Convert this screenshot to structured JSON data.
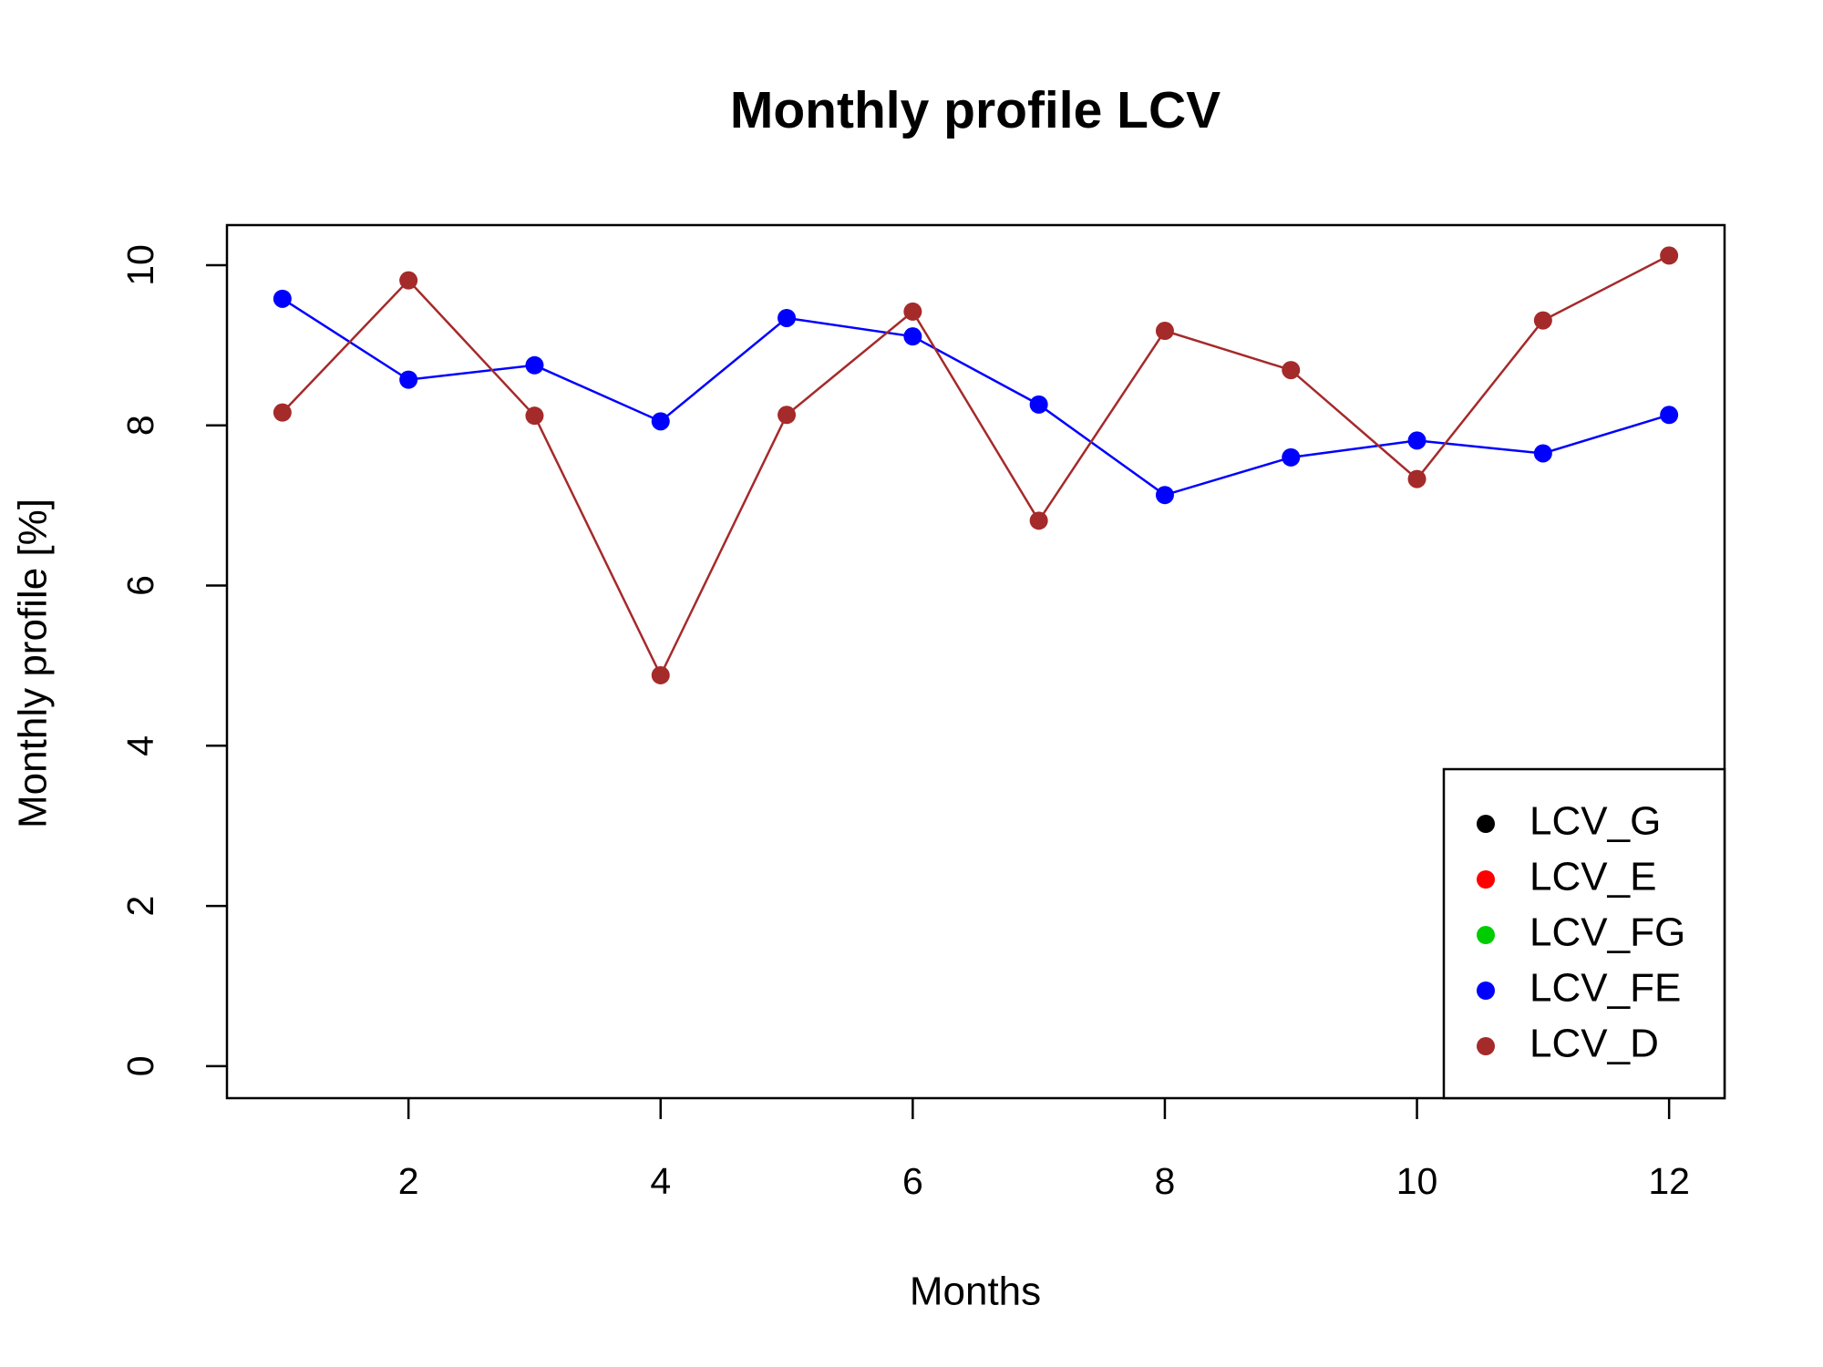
{
  "chart_data": {
    "type": "line",
    "title": "Monthly profile LCV",
    "xlabel": "Months",
    "ylabel": "Monthly profile [%]",
    "x": [
      1,
      2,
      3,
      4,
      5,
      6,
      7,
      8,
      9,
      10,
      11,
      12
    ],
    "xlim": [
      0.56,
      12.44
    ],
    "xticks": [
      2,
      4,
      6,
      8,
      10,
      12
    ],
    "ylim": [
      -0.4,
      10.5
    ],
    "yticks": [
      0,
      2,
      4,
      6,
      8,
      10
    ],
    "legend": "bottomright",
    "series": [
      {
        "name": "LCV_G",
        "color": "#000000",
        "values": [
          null,
          null,
          null,
          null,
          null,
          null,
          null,
          null,
          null,
          null,
          null,
          null
        ]
      },
      {
        "name": "LCV_E",
        "color": "#ff0000",
        "values": [
          null,
          null,
          null,
          null,
          null,
          null,
          null,
          null,
          null,
          null,
          null,
          null
        ]
      },
      {
        "name": "LCV_FG",
        "color": "#00cd00",
        "values": [
          null,
          null,
          null,
          null,
          null,
          null,
          null,
          null,
          null,
          null,
          null,
          null
        ]
      },
      {
        "name": "LCV_FE",
        "color": "#0000ff",
        "values": [
          9.58,
          8.57,
          8.75,
          8.05,
          9.34,
          9.11,
          8.26,
          7.13,
          7.6,
          7.81,
          7.65,
          8.13
        ]
      },
      {
        "name": "LCV_D",
        "color": "#a52a2a",
        "values": [
          8.16,
          9.81,
          8.12,
          4.88,
          8.13,
          9.42,
          6.81,
          9.18,
          8.69,
          7.33,
          9.31,
          10.12
        ]
      }
    ]
  }
}
